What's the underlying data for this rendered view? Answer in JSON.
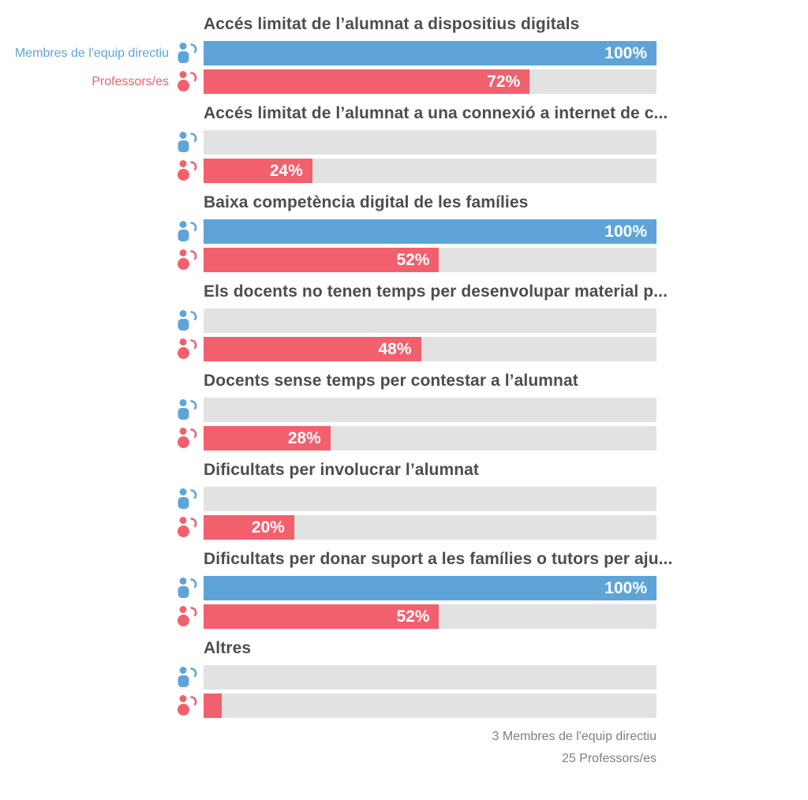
{
  "colors": {
    "director_blue": "#5FA4D8",
    "professor_pink": "#F2606E",
    "track_gray": "#E2E2E2",
    "title_gray": "#4D4D4D",
    "footer_gray": "#7F7F7F"
  },
  "legend": {
    "director_label": "Membres de l'equip directiu",
    "professor_label": "Professors/es"
  },
  "footer": {
    "line1": "3 Membres de l'equip directiu",
    "line2": "25 Professors/es"
  },
  "icons": {
    "director": "users-icon",
    "professor": "users-icon"
  },
  "groups": [
    {
      "title": "Accés limitat de l’alumnat a dispositius digitals",
      "director_pct": 100,
      "director_label": "100%",
      "professor_pct": 72,
      "professor_label": "72%"
    },
    {
      "title": "Accés limitat de l’alumnat a una connexió a internet de c...",
      "director_pct": 0,
      "director_label": "",
      "professor_pct": 24,
      "professor_label": "24%"
    },
    {
      "title": "Baixa competència digital de les famílies",
      "director_pct": 100,
      "director_label": "100%",
      "professor_pct": 52,
      "professor_label": "52%"
    },
    {
      "title": "Els docents no tenen temps per desenvolupar material p...",
      "director_pct": 0,
      "director_label": "",
      "professor_pct": 48,
      "professor_label": "48%"
    },
    {
      "title": "Docents sense temps per contestar a l’alumnat",
      "director_pct": 0,
      "director_label": "",
      "professor_pct": 28,
      "professor_label": "28%"
    },
    {
      "title": "Dificultats per involucrar l’alumnat",
      "director_pct": 0,
      "director_label": "",
      "professor_pct": 20,
      "professor_label": "20%"
    },
    {
      "title": "Dificultats per donar suport a les famílies o tutors per aju...",
      "director_pct": 100,
      "director_label": "100%",
      "professor_pct": 52,
      "professor_label": "52%"
    },
    {
      "title": "Altres",
      "director_pct": 0,
      "director_label": "",
      "professor_pct": 4,
      "professor_label": ""
    }
  ],
  "chart_data": {
    "type": "bar",
    "orientation": "horizontal",
    "categories": [
      "Accés limitat de l’alumnat a dispositius digitals",
      "Accés limitat de l’alumnat a una connexió a internet de c...",
      "Baixa competència digital de les famílies",
      "Els docents no tenen temps per desenvolupar material p...",
      "Docents sense temps per contestar a l’alumnat",
      "Dificultats per involucrar l’alumnat",
      "Dificultats per donar suport a les famílies o tutors per aju...",
      "Altres"
    ],
    "series": [
      {
        "name": "Membres de l'equip directiu",
        "color": "#5FA4D8",
        "values": [
          100,
          0,
          100,
          0,
          0,
          0,
          100,
          0
        ]
      },
      {
        "name": "Professors/es",
        "color": "#F2606E",
        "values": [
          72,
          24,
          52,
          48,
          28,
          20,
          52,
          4
        ]
      }
    ],
    "value_unit": "%",
    "xlim": [
      0,
      100
    ],
    "grid": false,
    "legend_position": "left-of-first-group",
    "data_labels": "inside-end, white bold, hidden when 0% or for Altres 4%",
    "annotations": [
      "3 Membres de l'equip directiu",
      "25 Professors/es"
    ]
  }
}
